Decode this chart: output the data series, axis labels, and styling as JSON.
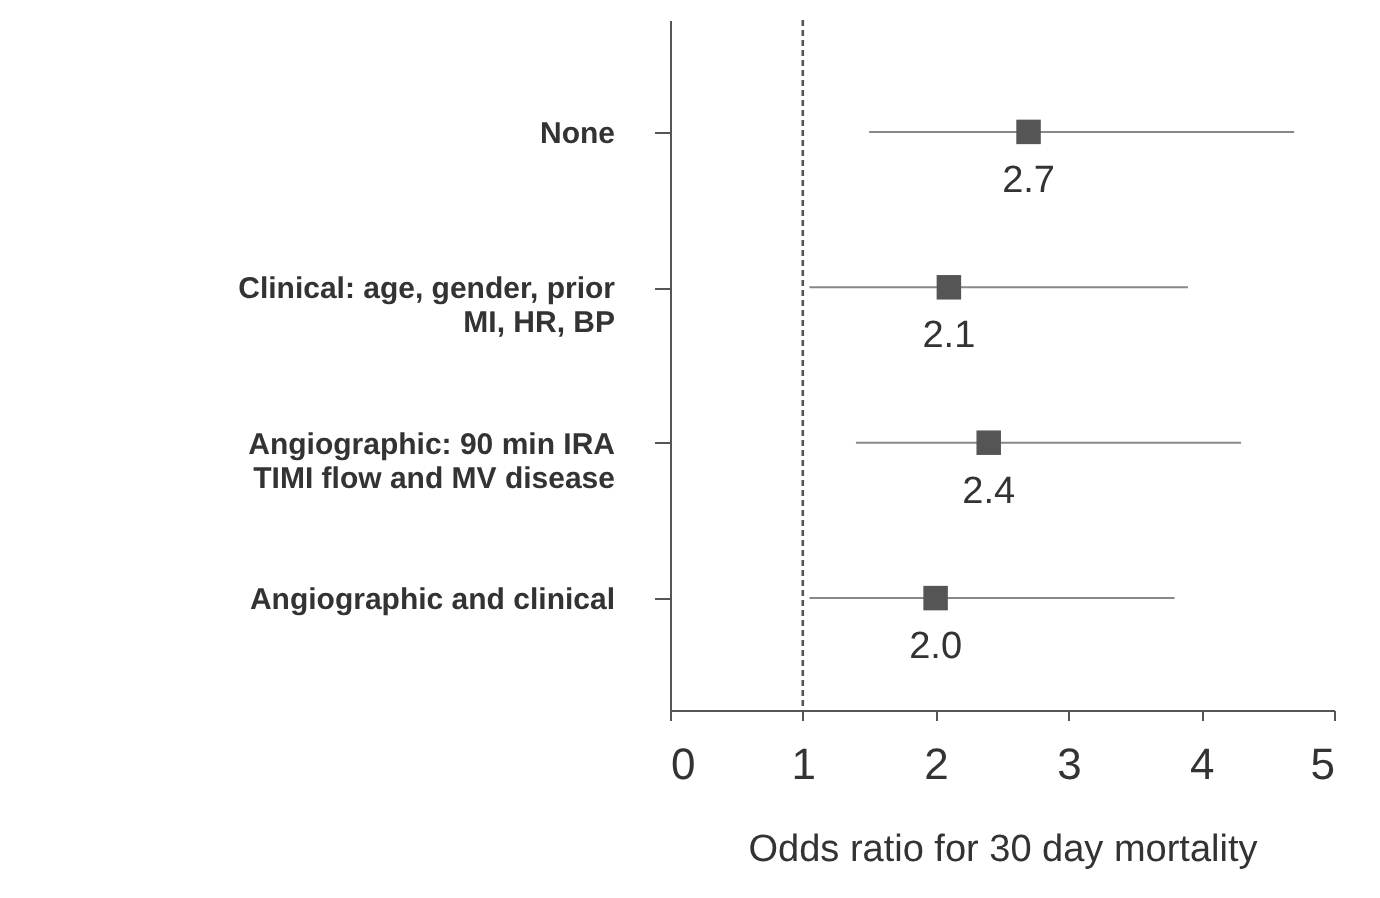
{
  "chart_data": {
    "type": "scatter",
    "orientation": "horizontal",
    "xlabel": "Odds ratio for 30 day mortality",
    "categories": [
      "None",
      "Clinical: age, gender, prior MI, HR, BP",
      "Angiographic: 90 min IRA TIMI flow and MV disease",
      "Angiographic and clinical"
    ],
    "values": [
      2.7,
      2.1,
      2.4,
      2.0
    ],
    "errors": [
      [
        1.5,
        4.7
      ],
      [
        1.05,
        3.9
      ],
      [
        1.4,
        4.3
      ],
      [
        1.05,
        3.8
      ]
    ],
    "value_labels": [
      "2.7",
      "2.1",
      "2.4",
      "2.0"
    ],
    "color": "#555555",
    "marker": "square",
    "xlim": [
      0,
      5
    ],
    "xticks": [
      0,
      1,
      2,
      3,
      4,
      5
    ],
    "ref_lines": [
      {
        "axis": "x",
        "value": 1,
        "line_style": "dashed"
      }
    ]
  }
}
